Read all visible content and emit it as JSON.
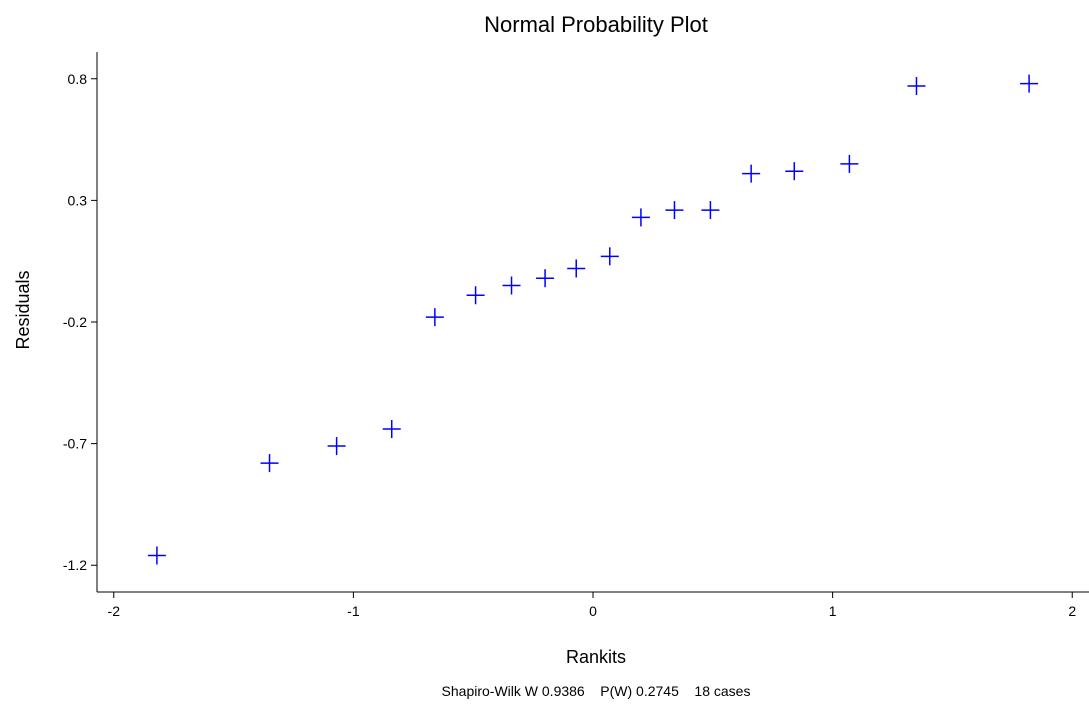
{
  "chart_data": {
    "type": "scatter",
    "title": "Normal Probability Plot",
    "xlabel": "Rankits",
    "ylabel": "Residuals",
    "footnote": "Shapiro-Wilk W 0.9386    P(W) 0.2745    18 cases",
    "marker": "plus",
    "marker_color": "#0000ff",
    "grid": false,
    "xlim": [
      -2.07,
      2.07
    ],
    "ylim": [
      -1.31,
      0.91
    ],
    "x_ticks": [
      {
        "value": -2,
        "label": "-2"
      },
      {
        "value": -1,
        "label": "-1"
      },
      {
        "value": 0,
        "label": "0"
      },
      {
        "value": 1,
        "label": "1"
      },
      {
        "value": 2,
        "label": "2"
      }
    ],
    "y_ticks": [
      {
        "value": 0.8,
        "label": "0.8"
      },
      {
        "value": 0.3,
        "label": "0.3"
      },
      {
        "value": -0.2,
        "label": "-0.2"
      },
      {
        "value": -0.7,
        "label": "-0.7"
      },
      {
        "value": -1.2,
        "label": "-1.2"
      }
    ],
    "points": [
      {
        "x": -1.82,
        "y": -1.16
      },
      {
        "x": -1.35,
        "y": -0.78
      },
      {
        "x": -1.07,
        "y": -0.71
      },
      {
        "x": -0.84,
        "y": -0.64
      },
      {
        "x": -0.66,
        "y": -0.18
      },
      {
        "x": -0.49,
        "y": -0.09
      },
      {
        "x": -0.34,
        "y": -0.05
      },
      {
        "x": -0.2,
        "y": -0.02
      },
      {
        "x": -0.07,
        "y": 0.02
      },
      {
        "x": 0.07,
        "y": 0.07
      },
      {
        "x": 0.2,
        "y": 0.23
      },
      {
        "x": 0.34,
        "y": 0.26
      },
      {
        "x": 0.49,
        "y": 0.26
      },
      {
        "x": 0.66,
        "y": 0.41
      },
      {
        "x": 0.84,
        "y": 0.42
      },
      {
        "x": 1.07,
        "y": 0.45
      },
      {
        "x": 1.35,
        "y": 0.77
      },
      {
        "x": 1.82,
        "y": 0.78
      }
    ]
  }
}
